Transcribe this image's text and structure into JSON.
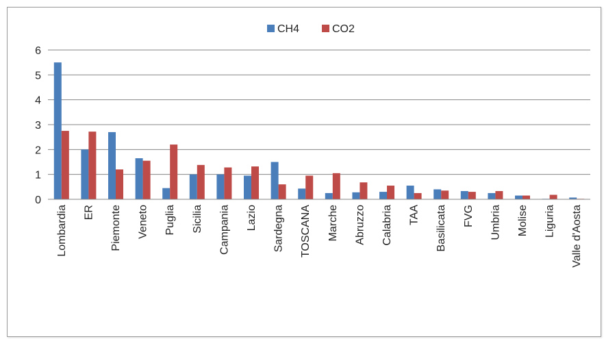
{
  "chart_data": {
    "type": "bar",
    "categories": [
      "Lombardia",
      "ER",
      "Piemonte",
      "Veneto",
      "Puglia",
      "Sicilia",
      "Campania",
      "Lazio",
      "Sardegna",
      "TOSCANA",
      "Marche",
      "Abruzzo",
      "Calabria",
      "TAA",
      "Basilicata",
      "FVG",
      "Umbria",
      "Molise",
      "Liguria",
      "Valle d'Aosta"
    ],
    "series": [
      {
        "name": "CH4",
        "color": "#4a7ebb",
        "values": [
          5.5,
          2.0,
          2.7,
          1.65,
          0.45,
          1.0,
          1.0,
          0.95,
          1.5,
          0.43,
          0.25,
          0.28,
          0.3,
          0.55,
          0.4,
          0.33,
          0.25,
          0.15,
          0.02,
          0.07
        ]
      },
      {
        "name": "CO2",
        "color": "#be4b48",
        "values": [
          2.75,
          2.72,
          1.2,
          1.55,
          2.2,
          1.38,
          1.28,
          1.32,
          0.6,
          0.95,
          1.05,
          0.68,
          0.55,
          0.25,
          0.35,
          0.3,
          0.33,
          0.15,
          0.18,
          0.02
        ]
      }
    ],
    "title": "",
    "xlabel": "",
    "ylabel": "",
    "ylim": [
      0,
      6
    ],
    "yticks": [
      "0",
      "1",
      "2",
      "3",
      "4",
      "5",
      "6"
    ],
    "grid": "horizontal",
    "legend": "top-center"
  }
}
